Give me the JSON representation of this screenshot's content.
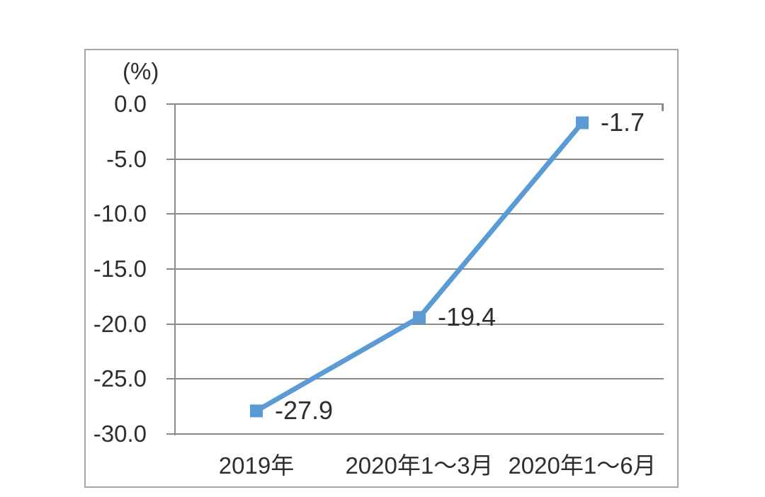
{
  "chart": {
    "unit_label": "(%)",
    "colors": {
      "line": "#5b9bd5",
      "marker": "#5b9bd5",
      "grid": "#8a8a8a",
      "axis": "#8a8a8a",
      "frame_border": "#a6a6a6",
      "text": "#2e2e2e",
      "background": "#ffffff"
    }
  },
  "chart_data": {
    "type": "line",
    "title": "",
    "ylabel": "(%)",
    "xlabel": "",
    "categories": [
      "2019年",
      "2020年1～3月",
      "2020年1～6月"
    ],
    "values": [
      -27.9,
      -19.4,
      -1.7
    ],
    "data_labels": [
      "-27.9",
      "-19.4",
      "-1.7"
    ],
    "ylim": [
      -30,
      0
    ],
    "ytick_step": 5,
    "ytick_labels": [
      "0.0",
      "-5.0",
      "-10.0",
      "-15.0",
      "-20.0",
      "-25.0",
      "-30.0"
    ],
    "grid": true,
    "legend_position": "none",
    "marker": "square"
  }
}
